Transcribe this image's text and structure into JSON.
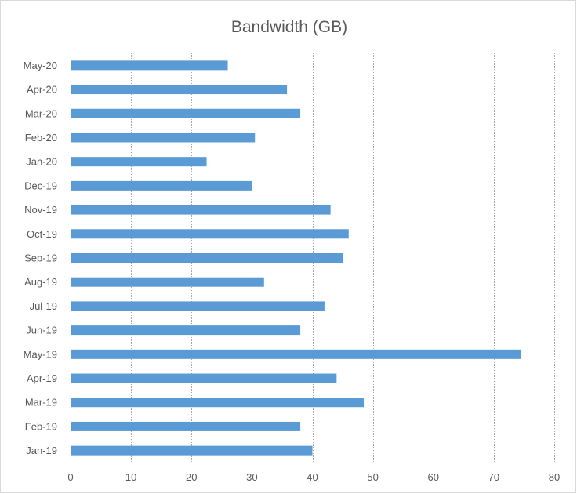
{
  "chart_data": {
    "type": "bar",
    "orientation": "horizontal",
    "title": "Bandwidth (GB)",
    "xlabel": "",
    "ylabel": "",
    "categories": [
      "Jan-19",
      "Feb-19",
      "Mar-19",
      "Apr-19",
      "May-19",
      "Jun-19",
      "Jul-19",
      "Aug-19",
      "Sep-19",
      "Oct-19",
      "Nov-19",
      "Dec-19",
      "Jan-20",
      "Feb-20",
      "Mar-20",
      "Apr-20",
      "May-20"
    ],
    "values": [
      40,
      38,
      48.5,
      44,
      74.5,
      38,
      42,
      32,
      45,
      46,
      43,
      30,
      22.5,
      30.5,
      38,
      35.8,
      26
    ],
    "xlim": [
      0,
      80
    ],
    "xticks": [
      0,
      10,
      20,
      30,
      40,
      50,
      60,
      70,
      80
    ],
    "grid": "vertical",
    "legend": "none",
    "bar_color": "#5b9bd5",
    "grid_color": "#a6a6a6",
    "text_color": "#595959"
  }
}
